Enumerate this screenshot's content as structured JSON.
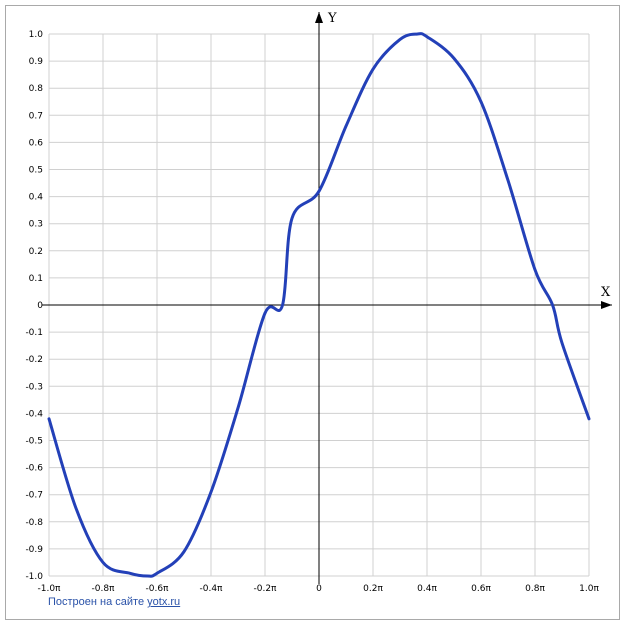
{
  "chart_data": {
    "type": "line",
    "function_samples_note_free": true,
    "xlabel": "X",
    "ylabel": "Y",
    "xlim": [
      -1.0,
      1.0
    ],
    "ylim": [
      -1.0,
      1.0
    ],
    "x_unit": "π",
    "grid": true,
    "x_tick_values": [
      -1.0,
      -0.8,
      -0.6,
      -0.4,
      -0.2,
      0,
      0.2,
      0.4,
      0.6,
      0.8,
      1.0
    ],
    "x_tick_labels": [
      "-1.0π",
      "-0.8π",
      "-0.6π",
      "-0.4π",
      "-0.2π",
      "0",
      "0.2π",
      "0.4π",
      "0.6π",
      "0.8π",
      "1.0π"
    ],
    "y_tick_values": [
      1.0,
      0.9,
      0.8,
      0.7,
      0.6,
      0.5,
      0.4,
      0.3,
      0.2,
      0.1,
      0,
      -0.1,
      -0.2,
      -0.3,
      -0.4,
      -0.5,
      -0.6,
      -0.7,
      -0.8,
      -0.9,
      -1.0
    ],
    "y_tick_labels": [
      "1.0",
      "0.9",
      "0.8",
      "0.7",
      "0.6",
      "0.5",
      "0.4",
      "0.3",
      "0.2",
      "0.1",
      "0",
      "-0.1",
      "-0.2",
      "-0.3",
      "-0.4",
      "-0.5",
      "-0.6",
      "-0.7",
      "-0.8",
      "-0.9",
      "-1.0"
    ],
    "series": [
      {
        "color": "#2340b8",
        "x": [
          -1.0,
          -0.9,
          -0.8,
          -0.7,
          -0.635,
          -0.6,
          -0.5,
          -0.4,
          -0.3,
          -0.2,
          -0.135,
          -0.1,
          0,
          0.1,
          0.2,
          0.3,
          0.365,
          0.4,
          0.5,
          0.6,
          0.7,
          0.8,
          0.865,
          0.9,
          1.0
        ],
        "y": [
          -0.42,
          -0.75,
          -0.95,
          -0.99,
          -1.0,
          -0.99,
          -0.91,
          -0.69,
          -0.38,
          -0.03,
          0.0,
          0.32,
          0.42,
          0.66,
          0.87,
          0.98,
          1.0,
          0.99,
          0.91,
          0.75,
          0.46,
          0.13,
          0.0,
          -0.14,
          -0.42
        ]
      }
    ]
  },
  "credit": {
    "text": "Построен на сайте",
    "link": "yotx.ru"
  }
}
